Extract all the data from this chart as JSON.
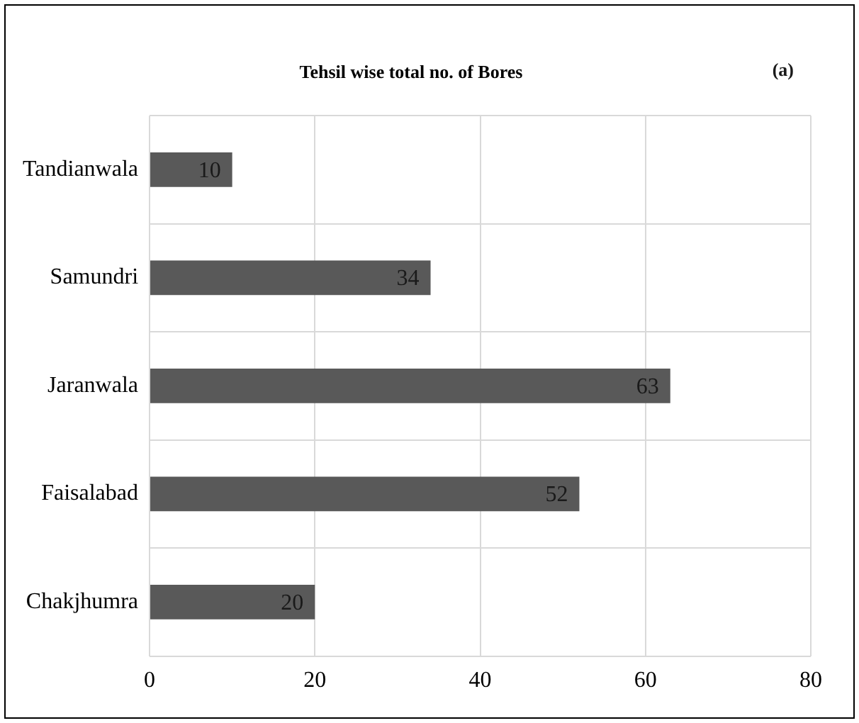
{
  "chart_data": {
    "type": "bar",
    "orientation": "horizontal",
    "title": "Tehsil wise total no. of Bores",
    "annotations": [
      "(a)"
    ],
    "categories": [
      "Tandianwala",
      "Samundri",
      "Jaranwala",
      "Faisalabad",
      "Chakjhumra"
    ],
    "values": [
      10,
      34,
      63,
      52,
      20
    ],
    "color": "#595959",
    "xlim": [
      0,
      80
    ],
    "xticks": [
      0,
      20,
      40,
      60,
      80
    ],
    "grid": true,
    "data_labels": true,
    "legend": false
  }
}
